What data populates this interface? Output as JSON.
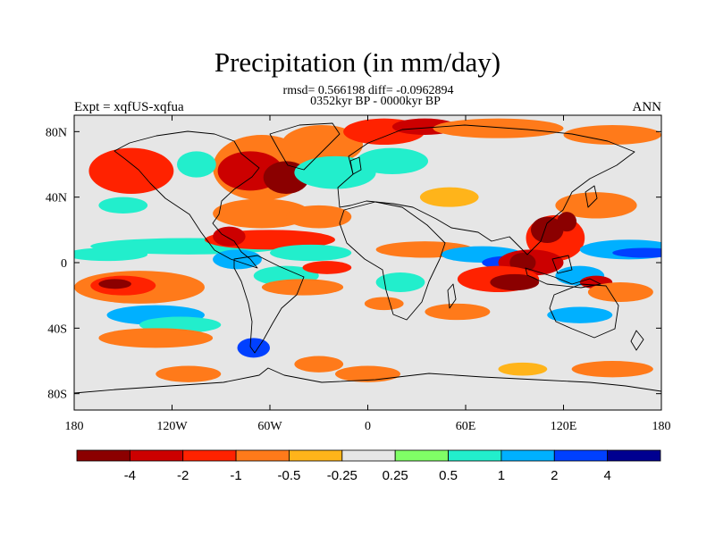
{
  "chart_data": {
    "type": "heatmap",
    "title": "Precipitation (in mm/day)",
    "subtitle_stats": "rmsd= 0.566198 diff= -0.0962894",
    "subtitle_period": "0352kyr BP - 0000kyr BP",
    "left_label": "Expt = xqfUS-xqfua",
    "right_label": "ANN",
    "x_axis": {
      "range": [
        -180,
        180
      ],
      "ticks": [
        {
          "value": -180,
          "label": "180"
        },
        {
          "value": -120,
          "label": "120W"
        },
        {
          "value": -60,
          "label": "60W"
        },
        {
          "value": 0,
          "label": "0"
        },
        {
          "value": 60,
          "label": "60E"
        },
        {
          "value": 120,
          "label": "120E"
        },
        {
          "value": 180,
          "label": "180"
        }
      ]
    },
    "y_axis": {
      "range": [
        -90,
        90
      ],
      "ticks": [
        {
          "value": 80,
          "label": "80N"
        },
        {
          "value": 40,
          "label": "40N"
        },
        {
          "value": 0,
          "label": "0"
        },
        {
          "value": -40,
          "label": "40S"
        },
        {
          "value": -80,
          "label": "80S"
        }
      ]
    },
    "colorbar": {
      "colors": [
        "#8b0000",
        "#cc0000",
        "#ff2200",
        "#ff7a1a",
        "#ffb41a",
        "#e6e6e6",
        "#80ff66",
        "#22eecc",
        "#00b0ff",
        "#0040ff",
        "#000090"
      ],
      "labels": [
        "-4",
        "-2",
        "-1",
        "-0.5",
        "-0.25",
        "0.25",
        "0.5",
        "1",
        "2",
        "4"
      ]
    },
    "anomalies": [
      {
        "lon": -143,
        "lat": 57,
        "rx": 13,
        "ry": 9,
        "level": -4
      },
      {
        "lon": -145,
        "lat": 56,
        "rx": 26,
        "ry": 14,
        "level": -1
      },
      {
        "lon": -65,
        "lat": 58,
        "rx": 30,
        "ry": 20,
        "level": -0.5
      },
      {
        "lon": -72,
        "lat": 56,
        "rx": 20,
        "ry": 12,
        "level": -2
      },
      {
        "lon": -50,
        "lat": 52,
        "rx": 14,
        "ry": 10,
        "level": -4
      },
      {
        "lon": -28,
        "lat": 72,
        "rx": 25,
        "ry": 12,
        "level": -0.5
      },
      {
        "lon": 10,
        "lat": 80,
        "rx": 25,
        "ry": 8,
        "level": -1
      },
      {
        "lon": 35,
        "lat": 83,
        "rx": 20,
        "ry": 5,
        "level": -2
      },
      {
        "lon": 80,
        "lat": 82,
        "rx": 40,
        "ry": 6,
        "level": -0.5
      },
      {
        "lon": 150,
        "lat": 78,
        "rx": 30,
        "ry": 6,
        "level": -0.5
      },
      {
        "lon": -20,
        "lat": 55,
        "rx": 25,
        "ry": 10,
        "level": 0.5
      },
      {
        "lon": 15,
        "lat": 62,
        "rx": 22,
        "ry": 8,
        "level": 0.5
      },
      {
        "lon": -105,
        "lat": 60,
        "rx": 12,
        "ry": 8,
        "level": 0.5
      },
      {
        "lon": -150,
        "lat": 35,
        "rx": 15,
        "ry": 5,
        "level": 0.5
      },
      {
        "lon": -65,
        "lat": 30,
        "rx": 30,
        "ry": 9,
        "level": -0.5
      },
      {
        "lon": -30,
        "lat": 28,
        "rx": 20,
        "ry": 7,
        "level": -0.5
      },
      {
        "lon": 50,
        "lat": 40,
        "rx": 18,
        "ry": 6,
        "level": -0.25
      },
      {
        "lon": 140,
        "lat": 35,
        "rx": 25,
        "ry": 8,
        "level": -0.5
      },
      {
        "lon": -110,
        "lat": 10,
        "rx": 60,
        "ry": 5,
        "level": 0.5
      },
      {
        "lon": -160,
        "lat": 5,
        "rx": 25,
        "ry": 4,
        "level": 0.5
      },
      {
        "lon": -60,
        "lat": 14,
        "rx": 40,
        "ry": 6,
        "level": -1
      },
      {
        "lon": -85,
        "lat": 16,
        "rx": 10,
        "ry": 6,
        "level": -2
      },
      {
        "lon": -35,
        "lat": 6,
        "rx": 25,
        "ry": 5,
        "level": 0.5
      },
      {
        "lon": -80,
        "lat": 2,
        "rx": 15,
        "ry": 6,
        "level": 1
      },
      {
        "lon": 35,
        "lat": 8,
        "rx": 30,
        "ry": 5,
        "level": -0.5
      },
      {
        "lon": 70,
        "lat": 5,
        "rx": 25,
        "ry": 5,
        "level": 1
      },
      {
        "lon": 85,
        "lat": 0,
        "rx": 15,
        "ry": 4,
        "level": 2
      },
      {
        "lon": 115,
        "lat": 15,
        "rx": 18,
        "ry": 14,
        "level": -1
      },
      {
        "lon": 110,
        "lat": 20,
        "rx": 10,
        "ry": 8,
        "level": -4
      },
      {
        "lon": 122,
        "lat": 25,
        "rx": 6,
        "ry": 6,
        "level": -4
      },
      {
        "lon": 160,
        "lat": 8,
        "rx": 30,
        "ry": 6,
        "level": 1
      },
      {
        "lon": 170,
        "lat": 6,
        "rx": 20,
        "ry": 3,
        "level": 2
      },
      {
        "lon": 100,
        "lat": 0,
        "rx": 20,
        "ry": 8,
        "level": -2
      },
      {
        "lon": 95,
        "lat": 0,
        "rx": 8,
        "ry": 6,
        "level": -4
      },
      {
        "lon": 80,
        "lat": -10,
        "rx": 25,
        "ry": 8,
        "level": -1
      },
      {
        "lon": 90,
        "lat": -12,
        "rx": 15,
        "ry": 5,
        "level": -4
      },
      {
        "lon": 130,
        "lat": -8,
        "rx": 15,
        "ry": 6,
        "level": 1
      },
      {
        "lon": 140,
        "lat": -12,
        "rx": 10,
        "ry": 4,
        "level": -2
      },
      {
        "lon": 155,
        "lat": -18,
        "rx": 20,
        "ry": 6,
        "level": -0.5
      },
      {
        "lon": -140,
        "lat": -15,
        "rx": 40,
        "ry": 10,
        "level": -0.5
      },
      {
        "lon": -150,
        "lat": -14,
        "rx": 20,
        "ry": 6,
        "level": -1
      },
      {
        "lon": -155,
        "lat": -13,
        "rx": 10,
        "ry": 3,
        "level": -4
      },
      {
        "lon": -130,
        "lat": -32,
        "rx": 30,
        "ry": 6,
        "level": 1
      },
      {
        "lon": -115,
        "lat": -38,
        "rx": 25,
        "ry": 5,
        "level": 0.5
      },
      {
        "lon": -130,
        "lat": -46,
        "rx": 35,
        "ry": 6,
        "level": -0.5
      },
      {
        "lon": -50,
        "lat": -8,
        "rx": 20,
        "ry": 6,
        "level": 0.5
      },
      {
        "lon": -40,
        "lat": -15,
        "rx": 25,
        "ry": 5,
        "level": -0.5
      },
      {
        "lon": -25,
        "lat": -3,
        "rx": 15,
        "ry": 4,
        "level": -1
      },
      {
        "lon": 20,
        "lat": -12,
        "rx": 15,
        "ry": 6,
        "level": 0.5
      },
      {
        "lon": 10,
        "lat": -25,
        "rx": 12,
        "ry": 4,
        "level": -0.5
      },
      {
        "lon": 55,
        "lat": -30,
        "rx": 20,
        "ry": 5,
        "level": -0.5
      },
      {
        "lon": 130,
        "lat": -32,
        "rx": 20,
        "ry": 5,
        "level": 1
      },
      {
        "lon": -70,
        "lat": -52,
        "rx": 10,
        "ry": 6,
        "level": 2
      },
      {
        "lon": -30,
        "lat": -62,
        "rx": 15,
        "ry": 5,
        "level": -0.5
      },
      {
        "lon": 0,
        "lat": -68,
        "rx": 20,
        "ry": 5,
        "level": -0.5
      },
      {
        "lon": -110,
        "lat": -68,
        "rx": 20,
        "ry": 5,
        "level": -0.5
      },
      {
        "lon": 150,
        "lat": -65,
        "rx": 25,
        "ry": 5,
        "level": -0.5
      },
      {
        "lon": 95,
        "lat": -65,
        "rx": 15,
        "ry": 4,
        "level": -0.25
      }
    ]
  }
}
